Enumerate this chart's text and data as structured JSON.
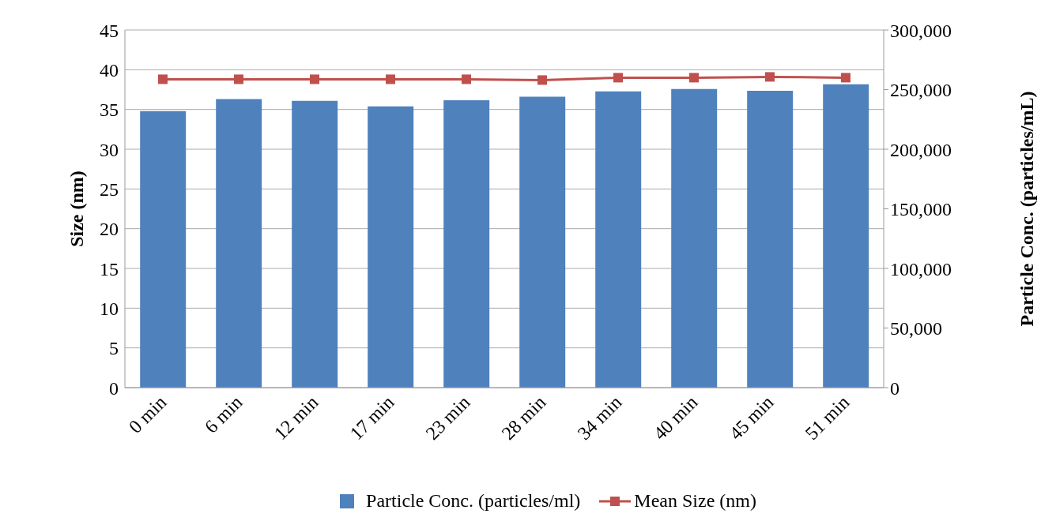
{
  "chart_data": {
    "type": "bar",
    "xlabel": null,
    "ylabel": "Size (nm)",
    "y2label": "Particle Conc. (particles/mL)",
    "categories": [
      "0 min",
      "6 min",
      "12 min",
      "17 min",
      "23 min",
      "28 min",
      "34 min",
      "40 min",
      "45 min",
      "51 min"
    ],
    "series": [
      {
        "name": "Particle Conc. (particles/ml)",
        "axis": "y2",
        "color": "#4f81bd",
        "values": [
          232000,
          242000,
          240500,
          236000,
          241000,
          244000,
          248500,
          250500,
          249000,
          254500
        ]
      },
      {
        "name": "Mean Size (nm)",
        "type": "line",
        "axis": "y",
        "color": "#c0504d",
        "values": [
          38.8,
          38.8,
          38.8,
          38.8,
          38.8,
          38.7,
          39.0,
          39.0,
          39.1,
          39.0
        ]
      }
    ],
    "ylim": [
      0,
      45
    ],
    "yticks": [
      0,
      5,
      10,
      15,
      20,
      25,
      30,
      35,
      40,
      45
    ],
    "y2lim": [
      0,
      300000
    ],
    "y2ticks": [
      0,
      {
        "value": 50000,
        "label": "50,000"
      },
      {
        "value": 100000,
        "label": "100,000"
      },
      {
        "value": 150000,
        "label": "150,000"
      },
      {
        "value": 200000,
        "label": "200,000"
      },
      {
        "value": 250000,
        "label": "250,000"
      },
      {
        "value": 300000,
        "label": "300,000"
      }
    ],
    "grid": "y",
    "legend": "bottom",
    "marker": "square",
    "line_style": "solid"
  }
}
